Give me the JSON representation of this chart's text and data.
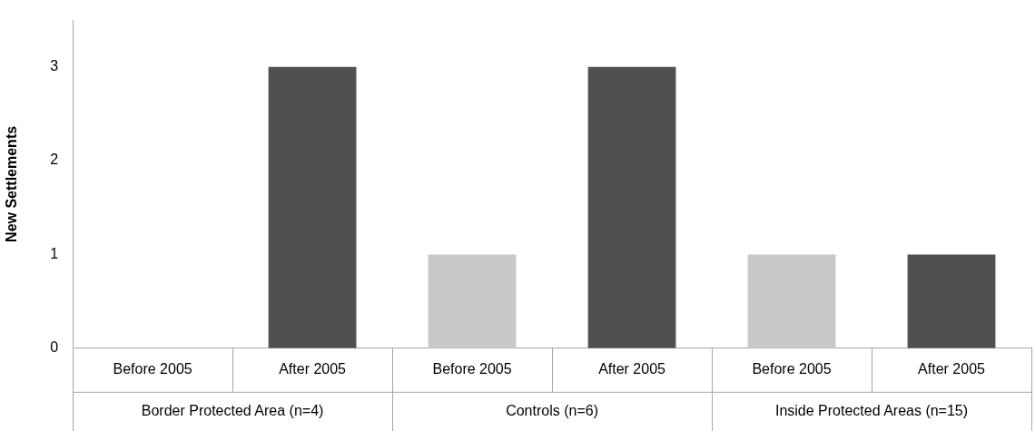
{
  "chart_data": {
    "type": "bar",
    "ylabel": "New Settlements",
    "categories": [
      "Before 2005",
      "After 2005",
      "Before 2005",
      "After 2005",
      "Before 2005",
      "After 2005"
    ],
    "values": [
      0,
      3,
      1,
      3,
      1,
      1
    ],
    "colors": [
      "#c8c8c8",
      "#505050",
      "#c8c8c8",
      "#505050",
      "#c8c8c8",
      "#505050"
    ],
    "ylim": [
      0,
      3.5
    ],
    "yticks": [
      0,
      1,
      2,
      3
    ],
    "grid": false,
    "legend": false,
    "annotations": [
      "Border Protected Area (n=4)",
      "Controls (n=6)",
      "Inside Protected Areas (n=15)"
    ]
  }
}
